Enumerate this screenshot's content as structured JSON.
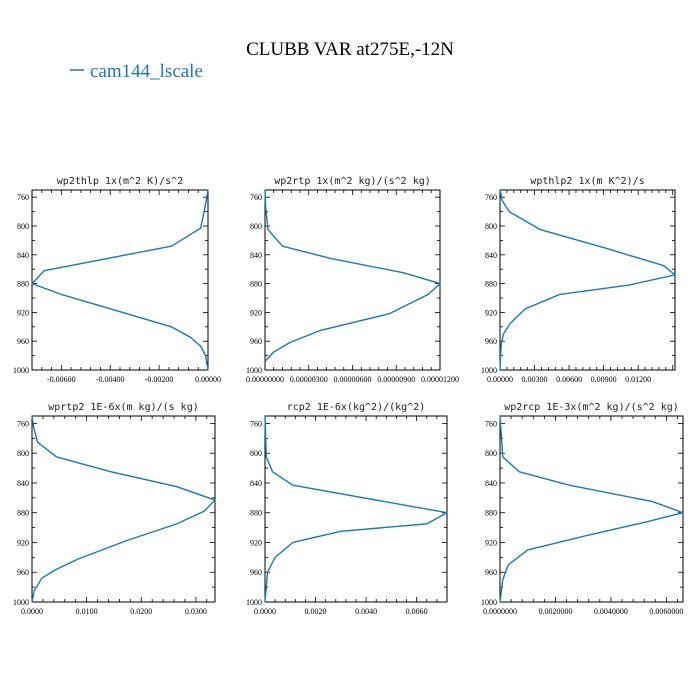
{
  "figure": {
    "title": "CLUBB VAR at275E,-12N",
    "legend_label": "cam144_lscale",
    "legend_placement": "top-left",
    "line_color": "#1f77b4"
  },
  "chart_data": [
    {
      "type": "line",
      "title": "wp2thlp  1x(m^2 K)/s^2",
      "xlim": [
        -0.0072,
        0.0
      ],
      "ylim": [
        1000,
        750
      ],
      "xticks": [
        -0.006,
        -0.004,
        -0.002,
        0.0
      ],
      "xtick_labels": [
        "-0.00600",
        "-0.00400",
        "-0.00200",
        "0.00000"
      ],
      "yticks": [
        760,
        800,
        840,
        880,
        920,
        960,
        1000
      ],
      "ytick_labels": [
        "760",
        "800",
        "840",
        "880",
        "920",
        "960",
        "1000"
      ],
      "series": [
        {
          "x": [
            0.0,
            -0.0001,
            -0.0003,
            -0.0015,
            -0.0067,
            -0.0072,
            -0.006,
            -0.004,
            -0.0015,
            -0.0007,
            -0.0003,
            -0.0001,
            0.0
          ],
          "y": [
            750,
            770,
            803,
            828,
            862,
            880,
            895,
            915,
            940,
            955,
            967,
            980,
            1000
          ]
        }
      ]
    },
    {
      "type": "line",
      "title": "wp2rtp  1x(m^2 kg)/(s^2 kg)",
      "xlim": [
        0.0,
        1.2e-05
      ],
      "ylim": [
        1000,
        750
      ],
      "xticks": [
        0.0,
        3e-06,
        6e-06,
        9e-06,
        1.2e-05
      ],
      "xtick_labels": [
        "0.00000000",
        "0.00000300",
        "0.00000600",
        "0.00000900",
        "0.00001200"
      ],
      "yticks": [
        760,
        800,
        840,
        880,
        920,
        960,
        1000
      ],
      "ytick_labels": [
        "760",
        "800",
        "840",
        "880",
        "920",
        "960",
        "1000"
      ],
      "series": [
        {
          "x": [
            0.0,
            5e-08,
            2e-07,
            1.2e-06,
            4.5e-06,
            9.5e-06,
            1.2e-05,
            1.12e-05,
            8.5e-06,
            3.8e-06,
            1.7e-06,
            6e-07,
            0.0
          ],
          "y": [
            750,
            775,
            805,
            828,
            845,
            865,
            880,
            895,
            922,
            945,
            962,
            975,
            988
          ]
        }
      ]
    },
    {
      "type": "line",
      "title": "wpthlp2  1x(m K^2)/s",
      "xlim": [
        0.0,
        0.0152
      ],
      "ylim": [
        1000,
        750
      ],
      "xticks": [
        0.0,
        0.003,
        0.006,
        0.009,
        0.012
      ],
      "xtick_labels": [
        "0.00000",
        "0.00300",
        "0.00600",
        "0.00900",
        "0.01200"
      ],
      "yticks": [
        760,
        800,
        840,
        880,
        920,
        960,
        1000
      ],
      "ytick_labels": [
        "760",
        "800",
        "840",
        "880",
        "920",
        "960",
        "1000"
      ],
      "series": [
        {
          "x": [
            0.0,
            0.0002,
            0.0008,
            0.0035,
            0.009,
            0.0142,
            0.0152,
            0.0112,
            0.0052,
            0.0022,
            0.0009,
            0.0003,
            0.0001,
            0.0
          ],
          "y": [
            750,
            765,
            780,
            805,
            830,
            855,
            868,
            882,
            895,
            915,
            935,
            950,
            965,
            1000
          ]
        }
      ]
    },
    {
      "type": "line",
      "title": "wprtp2  1E-6x(m kg)/(s kg)",
      "xlim": [
        0.0,
        0.0335
      ],
      "ylim": [
        1000,
        750
      ],
      "xticks": [
        0.0,
        0.01,
        0.02,
        0.03
      ],
      "xtick_labels": [
        "0.0000",
        "0.0100",
        "0.0200",
        "0.0300"
      ],
      "yticks": [
        760,
        800,
        840,
        880,
        920,
        960,
        1000
      ],
      "ytick_labels": [
        "760",
        "800",
        "840",
        "880",
        "920",
        "960",
        "1000"
      ],
      "series": [
        {
          "x": [
            0.0,
            0.0003,
            0.001,
            0.0045,
            0.0145,
            0.0265,
            0.0335,
            0.0315,
            0.0265,
            0.0175,
            0.0085,
            0.0042,
            0.0018,
            0.0004,
            0.0
          ],
          "y": [
            750,
            765,
            785,
            805,
            825,
            845,
            863,
            878,
            895,
            917,
            942,
            957,
            968,
            985,
            1000
          ]
        }
      ]
    },
    {
      "type": "line",
      "title": "rcp2  1E-6x(kg^2)/(kg^2)",
      "xlim": [
        0.0,
        0.0072
      ],
      "ylim": [
        1000,
        750
      ],
      "xticks": [
        0.0,
        0.002,
        0.004,
        0.006
      ],
      "xtick_labels": [
        "0.0000",
        "0.0020",
        "0.0040",
        "0.0060"
      ],
      "yticks": [
        760,
        800,
        840,
        880,
        920,
        960,
        1000
      ],
      "ytick_labels": [
        "760",
        "800",
        "840",
        "880",
        "920",
        "960",
        "1000"
      ],
      "series": [
        {
          "x": [
            0.0,
            5e-05,
            0.0003,
            0.0011,
            0.0072,
            0.0064,
            0.003,
            0.0011,
            0.0004,
            0.0001,
            0.0
          ],
          "y": [
            750,
            805,
            825,
            843,
            880,
            895,
            905,
            920,
            940,
            960,
            1000
          ]
        }
      ]
    },
    {
      "type": "line",
      "title": "wp2rcp  1E-3x(m^2 kg)/(s^2 kg)",
      "xlim": [
        0.0,
        0.0066
      ],
      "ylim": [
        1000,
        750
      ],
      "xticks": [
        0.0,
        0.002,
        0.004,
        0.006
      ],
      "xtick_labels": [
        "0.0000000",
        "0.0020000",
        "0.0040000",
        "0.0060000"
      ],
      "yticks": [
        760,
        800,
        840,
        880,
        920,
        960,
        1000
      ],
      "ytick_labels": [
        "760",
        "800",
        "840",
        "880",
        "920",
        "960",
        "1000"
      ],
      "series": [
        {
          "x": [
            0.0,
            0.0001,
            0.0007,
            0.0025,
            0.0055,
            0.0066,
            0.0052,
            0.0032,
            0.001,
            0.0003,
            0.0001,
            0.0
          ],
          "y": [
            750,
            805,
            825,
            843,
            865,
            880,
            893,
            910,
            930,
            950,
            970,
            1000
          ]
        }
      ]
    }
  ]
}
